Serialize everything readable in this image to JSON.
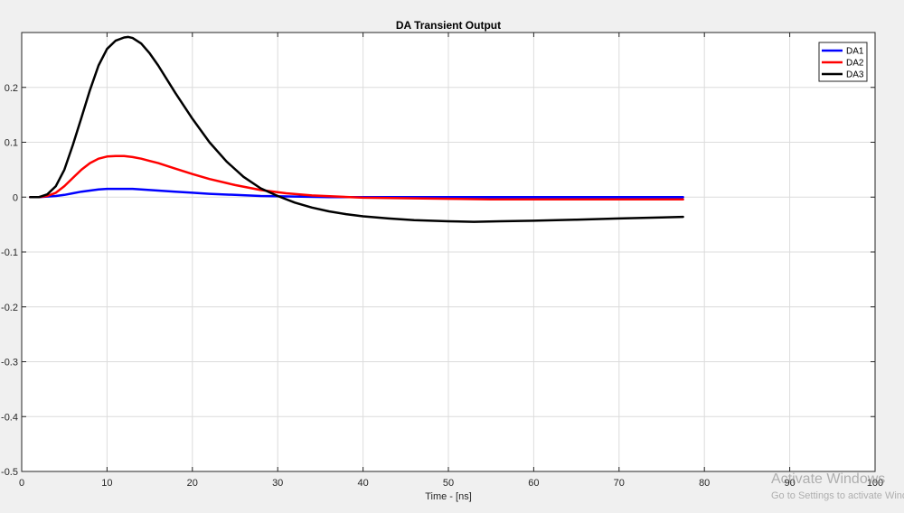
{
  "chart_data": {
    "type": "line",
    "title": "DA Transient Output",
    "xlabel": "Time - [ns]",
    "ylabel": "",
    "xlim": [
      0,
      100
    ],
    "ylim": [
      -0.5,
      0.3
    ],
    "xticks": [
      0,
      10,
      20,
      30,
      40,
      50,
      60,
      70,
      80,
      90,
      100
    ],
    "yticks": [
      -0.5,
      -0.4,
      -0.3,
      -0.2,
      -0.1,
      0,
      0.1,
      0.2
    ],
    "grid": true,
    "legend_position": "top-right",
    "series": [
      {
        "name": "DA1",
        "color": "#0000ff",
        "x": [
          1,
          2,
          3,
          4,
          5,
          6,
          7,
          8,
          9,
          10,
          11,
          12,
          13,
          14,
          15,
          16,
          18,
          20,
          22,
          25,
          28,
          32,
          36,
          40,
          45,
          50,
          55,
          60,
          65,
          70,
          75,
          77.5
        ],
        "y": [
          0,
          0,
          0.001,
          0.002,
          0.004,
          0.007,
          0.01,
          0.012,
          0.014,
          0.015,
          0.015,
          0.015,
          0.015,
          0.014,
          0.013,
          0.012,
          0.01,
          0.008,
          0.006,
          0.004,
          0.002,
          0.001,
          0,
          0,
          0,
          0,
          0,
          0,
          0,
          0,
          0,
          0
        ]
      },
      {
        "name": "DA2",
        "color": "#ff0000",
        "x": [
          1,
          2,
          3,
          4,
          5,
          6,
          7,
          8,
          9,
          10,
          11,
          12,
          13,
          14,
          15,
          16,
          18,
          20,
          22,
          25,
          28,
          31,
          34,
          37,
          40,
          45,
          50,
          55,
          60,
          65,
          70,
          75,
          77.5
        ],
        "y": [
          0,
          0,
          0.002,
          0.008,
          0.02,
          0.035,
          0.05,
          0.062,
          0.07,
          0.074,
          0.075,
          0.075,
          0.073,
          0.07,
          0.066,
          0.062,
          0.052,
          0.042,
          0.033,
          0.022,
          0.013,
          0.007,
          0.003,
          0.001,
          -0.001,
          -0.002,
          -0.003,
          -0.004,
          -0.004,
          -0.004,
          -0.004,
          -0.004,
          -0.004
        ]
      },
      {
        "name": "DA3",
        "color": "#000000",
        "x": [
          1,
          2,
          3,
          4,
          5,
          6,
          7,
          8,
          9,
          10,
          11,
          12,
          12.5,
          13,
          14,
          15,
          16,
          18,
          20,
          22,
          24,
          26,
          28,
          30,
          32,
          34,
          36,
          38,
          40,
          43,
          46,
          50,
          53,
          56,
          60,
          65,
          70,
          75,
          77.5
        ],
        "y": [
          0,
          0,
          0.005,
          0.02,
          0.05,
          0.095,
          0.145,
          0.195,
          0.24,
          0.27,
          0.285,
          0.291,
          0.292,
          0.29,
          0.28,
          0.262,
          0.24,
          0.19,
          0.143,
          0.1,
          0.065,
          0.037,
          0.016,
          0.002,
          -0.01,
          -0.019,
          -0.026,
          -0.031,
          -0.035,
          -0.039,
          -0.042,
          -0.044,
          -0.045,
          -0.044,
          -0.043,
          -0.041,
          -0.039,
          -0.037,
          -0.036
        ]
      }
    ]
  },
  "watermark": {
    "line1": "Activate Windows",
    "line2": "Go to Settings to activate Windows."
  }
}
